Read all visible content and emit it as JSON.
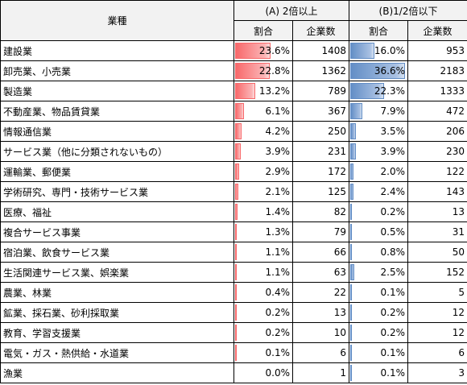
{
  "header": {
    "industry": "業種",
    "groupA": "(A) 2倍以上",
    "groupB": "(B)1/2倍以下",
    "share": "割合",
    "count": "企業数"
  },
  "colors": {
    "barA": "#f8696b",
    "barB": "#638ec6"
  },
  "rows": [
    {
      "industry": "建設業",
      "a_share": "23.6%",
      "a_count": "1408",
      "b_share": "16.0%",
      "b_count": "953"
    },
    {
      "industry": "卸売業、小売業",
      "a_share": "22.8%",
      "a_count": "1362",
      "b_share": "36.6%",
      "b_count": "2183"
    },
    {
      "industry": "製造業",
      "a_share": "13.2%",
      "a_count": "789",
      "b_share": "22.3%",
      "b_count": "1333"
    },
    {
      "industry": "不動産業、物品賃貸業",
      "a_share": "6.1%",
      "a_count": "367",
      "b_share": "7.9%",
      "b_count": "472"
    },
    {
      "industry": "情報通信業",
      "a_share": "4.2%",
      "a_count": "250",
      "b_share": "3.5%",
      "b_count": "206"
    },
    {
      "industry": "サービス業（他に分類されないもの）",
      "a_share": "3.9%",
      "a_count": "231",
      "b_share": "3.9%",
      "b_count": "230"
    },
    {
      "industry": "運輸業、郵便業",
      "a_share": "2.9%",
      "a_count": "172",
      "b_share": "2.0%",
      "b_count": "122"
    },
    {
      "industry": "学術研究、専門・技術サービス業",
      "a_share": "2.1%",
      "a_count": "125",
      "b_share": "2.4%",
      "b_count": "143"
    },
    {
      "industry": "医療、福祉",
      "a_share": "1.4%",
      "a_count": "82",
      "b_share": "0.2%",
      "b_count": "13"
    },
    {
      "industry": "複合サービス事業",
      "a_share": "1.3%",
      "a_count": "79",
      "b_share": "0.5%",
      "b_count": "31"
    },
    {
      "industry": "宿泊業、飲食サービス業",
      "a_share": "1.1%",
      "a_count": "66",
      "b_share": "0.8%",
      "b_count": "50"
    },
    {
      "industry": "生活関連サービス業、娯楽業",
      "a_share": "1.1%",
      "a_count": "63",
      "b_share": "2.5%",
      "b_count": "152"
    },
    {
      "industry": "農業、林業",
      "a_share": "0.4%",
      "a_count": "22",
      "b_share": "0.1%",
      "b_count": "5"
    },
    {
      "industry": "鉱業、採石業、砂利採取業",
      "a_share": "0.2%",
      "a_count": "13",
      "b_share": "0.2%",
      "b_count": "12"
    },
    {
      "industry": "教育、学習支援業",
      "a_share": "0.2%",
      "a_count": "10",
      "b_share": "0.2%",
      "b_count": "12"
    },
    {
      "industry": "電気・ガス・熱供給・水道業",
      "a_share": "0.1%",
      "a_count": "6",
      "b_share": "0.1%",
      "b_count": "6"
    },
    {
      "industry": "漁業",
      "a_share": "0.0%",
      "a_count": "1",
      "b_share": "0.1%",
      "b_count": "3"
    }
  ]
}
